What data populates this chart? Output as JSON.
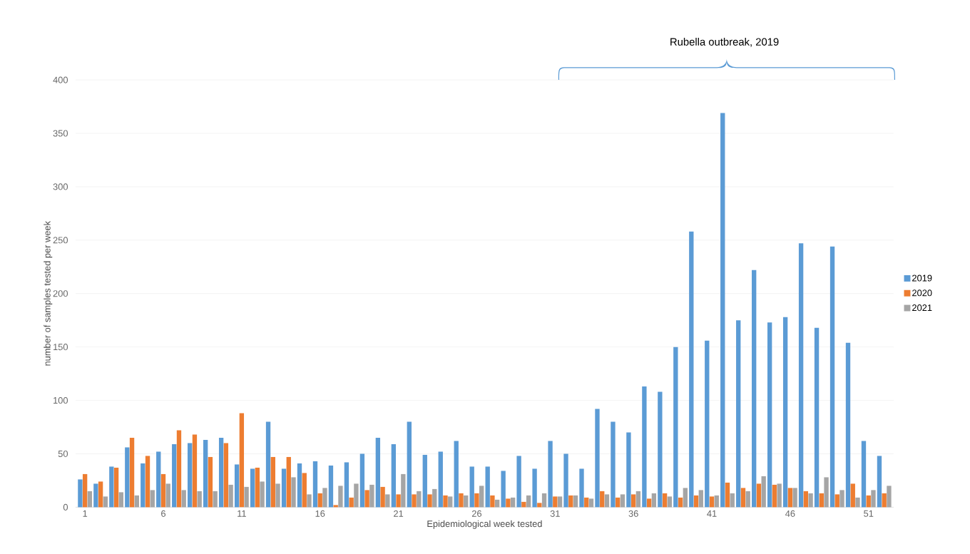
{
  "chart_data": {
    "type": "bar",
    "xlabel": "Epidemiological week tested",
    "ylabel": "number of samples tested per week",
    "categories": [
      "1",
      null,
      null,
      null,
      null,
      "6",
      null,
      null,
      null,
      null,
      "11",
      null,
      null,
      null,
      null,
      "16",
      null,
      null,
      null,
      null,
      "21",
      null,
      null,
      null,
      null,
      "26",
      null,
      null,
      null,
      null,
      "31",
      null,
      null,
      null,
      null,
      "36",
      null,
      null,
      null,
      null,
      "41",
      null,
      null,
      null,
      null,
      "46",
      null,
      null,
      null,
      null,
      "51",
      null
    ],
    "series": [
      {
        "name": "2019",
        "color": "#5b9bd5",
        "values": [
          26,
          22,
          38,
          56,
          41,
          52,
          59,
          60,
          63,
          65,
          40,
          36,
          80,
          36,
          41,
          43,
          39,
          42,
          50,
          65,
          59,
          80,
          49,
          52,
          62,
          38,
          38,
          34,
          48,
          36,
          62,
          50,
          36,
          92,
          80,
          70,
          113,
          108,
          150,
          258,
          156,
          369,
          175,
          222,
          173,
          178,
          247,
          168,
          244,
          154,
          62,
          48
        ]
      },
      {
        "name": "2020",
        "color": "#ed7d31",
        "values": [
          31,
          24,
          37,
          65,
          48,
          31,
          72,
          68,
          47,
          60,
          88,
          37,
          47,
          47,
          32,
          13,
          2,
          9,
          16,
          19,
          12,
          12,
          12,
          11,
          13,
          13,
          11,
          8,
          5,
          4,
          10,
          11,
          9,
          15,
          9,
          12,
          8,
          13,
          9,
          11,
          10,
          23,
          18,
          22,
          21,
          18,
          15,
          13,
          12,
          22,
          11,
          13
        ]
      },
      {
        "name": "2021",
        "color": "#a5a5a5",
        "values": [
          15,
          10,
          14,
          11,
          16,
          22,
          16,
          15,
          15,
          21,
          19,
          24,
          22,
          28,
          12,
          18,
          20,
          22,
          21,
          12,
          31,
          15,
          17,
          10,
          11,
          20,
          7,
          9,
          11,
          13,
          10,
          11,
          8,
          12,
          12,
          15,
          13,
          10,
          18,
          16,
          11,
          13,
          15,
          29,
          22,
          18,
          13,
          28,
          16,
          9,
          16,
          20
        ]
      }
    ],
    "ylim": [
      0,
      400
    ],
    "yticks": [
      0,
      50,
      100,
      150,
      200,
      250,
      300,
      350,
      400
    ],
    "grid": "y",
    "legend": "right",
    "annotations": [
      "Rubella outbreak, 2019"
    ]
  }
}
